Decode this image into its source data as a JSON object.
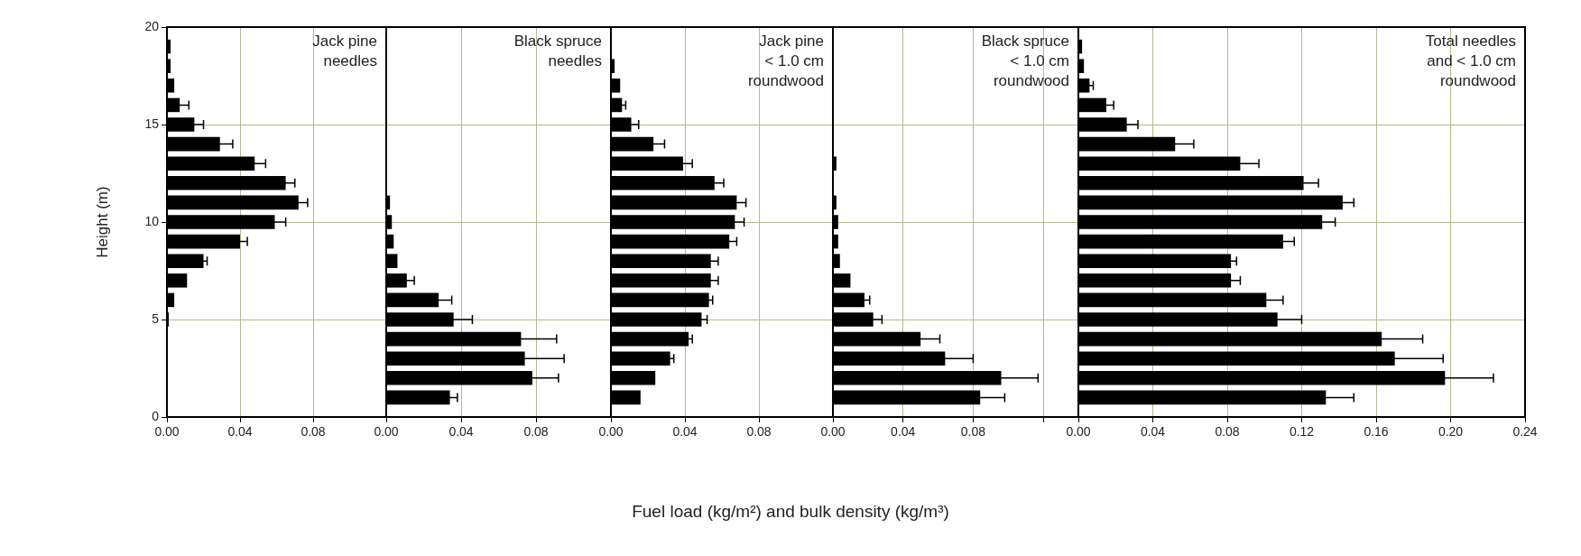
{
  "chart_data": [
    {
      "type": "bar",
      "orientation": "horizontal",
      "title": "Jack pine\nneedles",
      "ylabel": "Height (m)",
      "color": "#000000",
      "grid": true,
      "x": [
        1,
        2,
        3,
        4,
        5,
        6,
        7,
        8,
        9,
        10,
        11,
        12,
        13,
        14,
        15,
        16,
        17,
        18,
        19
      ],
      "values": [
        0,
        0,
        0,
        0,
        0.001,
        0.004,
        0.011,
        0.02,
        0.04,
        0.059,
        0.072,
        0.065,
        0.048,
        0.029,
        0.015,
        0.007,
        0.004,
        0.002,
        0.002
      ],
      "errors": [
        null,
        null,
        null,
        null,
        null,
        null,
        null,
        0.002,
        0.004,
        0.006,
        0.005,
        0.005,
        0.006,
        0.007,
        0.005,
        0.005,
        null,
        null,
        null
      ],
      "xlim": [
        0,
        0.12
      ],
      "xticks": [
        {
          "value": 0,
          "label": "0.00"
        },
        {
          "value": 0.04,
          "label": "0.04"
        },
        {
          "value": 0.08,
          "label": "0.08"
        }
      ],
      "ylim": [
        0,
        20
      ],
      "yticks": [
        0,
        5,
        10,
        15,
        20
      ]
    },
    {
      "type": "bar",
      "orientation": "horizontal",
      "title": "Black spruce\nneedles",
      "color": "#000000",
      "grid": true,
      "tick_labels": "x",
      "x": [
        1,
        2,
        3,
        4,
        5,
        6,
        7,
        8,
        9,
        10,
        11,
        12,
        13,
        14,
        15,
        16,
        17,
        18,
        19
      ],
      "values": [
        0.034,
        0.078,
        0.074,
        0.072,
        0.036,
        0.028,
        0.011,
        0.006,
        0.004,
        0.003,
        0.002,
        0,
        0,
        0,
        0,
        0,
        0,
        0,
        0
      ],
      "errors": [
        0.004,
        0.014,
        0.021,
        0.019,
        0.01,
        0.007,
        0.004,
        null,
        null,
        null,
        null,
        null,
        null,
        null,
        null,
        null,
        null,
        null,
        null
      ],
      "xlim": [
        0,
        0.12
      ],
      "xticks": [
        {
          "value": 0,
          "label": "0.00"
        },
        {
          "value": 0.04,
          "label": "0.04"
        },
        {
          "value": 0.08,
          "label": "0.08"
        }
      ],
      "ylim": [
        0,
        20
      ],
      "yticks": [
        0,
        5,
        10,
        15,
        20
      ]
    },
    {
      "type": "bar",
      "orientation": "horizontal",
      "title": "Jack pine\n< 1.0 cm\nroundwood",
      "xlabel": "Fuel load (kg/m²) and bulk density (kg/m³)",
      "color": "#000000",
      "grid": true,
      "tick_labels": "x",
      "x": [
        1,
        2,
        3,
        4,
        5,
        6,
        7,
        8,
        9,
        10,
        11,
        12,
        13,
        14,
        15,
        16,
        17,
        18,
        19
      ],
      "values": [
        0.016,
        0.024,
        0.032,
        0.042,
        0.049,
        0.053,
        0.054,
        0.054,
        0.064,
        0.067,
        0.068,
        0.056,
        0.039,
        0.023,
        0.011,
        0.006,
        0.005,
        0.002,
        0
      ],
      "errors": [
        null,
        null,
        0.002,
        0.002,
        0.003,
        0.002,
        0.004,
        0.004,
        0.004,
        0.005,
        0.005,
        0.005,
        0.005,
        0.006,
        0.004,
        0.002,
        null,
        null,
        null
      ],
      "xlim": [
        0,
        0.12
      ],
      "xticks": [
        {
          "value": 0,
          "label": "0.00"
        },
        {
          "value": 0.04,
          "label": "0.04"
        },
        {
          "value": 0.08,
          "label": "0.08"
        }
      ],
      "ylim": [
        0,
        20
      ],
      "yticks": [
        0,
        5,
        10,
        15,
        20
      ]
    },
    {
      "type": "bar",
      "orientation": "horizontal",
      "title": "Black spruce\n< 1.0 cm\nroundwood",
      "color": "#000000",
      "grid": true,
      "tick_labels": "x",
      "x": [
        1,
        2,
        3,
        4,
        5,
        6,
        7,
        8,
        9,
        10,
        11,
        12,
        13,
        14,
        15,
        16,
        17,
        18,
        19
      ],
      "values": [
        0.084,
        0.096,
        0.064,
        0.05,
        0.023,
        0.018,
        0.01,
        0.004,
        0.003,
        0.003,
        0.002,
        0,
        0.002,
        0,
        0,
        0,
        0,
        0,
        0
      ],
      "errors": [
        0.014,
        0.021,
        0.016,
        0.011,
        0.005,
        0.003,
        null,
        null,
        null,
        null,
        null,
        null,
        null,
        null,
        null,
        null,
        null,
        null,
        null
      ],
      "xlim": [
        0,
        0.14
      ],
      "xticks": [
        {
          "value": 0,
          "label": "0.00"
        },
        {
          "value": 0.04,
          "label": "0.04"
        },
        {
          "value": 0.08,
          "label": "0.08"
        },
        {
          "value": 0.12,
          "label": null
        }
      ],
      "ylim": [
        0,
        20
      ],
      "yticks": [
        0,
        5,
        10,
        15,
        20
      ]
    },
    {
      "type": "bar",
      "orientation": "horizontal",
      "title": "Total needles\nand < 1.0 cm\nroundwood",
      "color": "#000000",
      "grid": true,
      "tick_labels": "x",
      "x": [
        1,
        2,
        3,
        4,
        5,
        6,
        7,
        8,
        9,
        10,
        11,
        12,
        13,
        14,
        15,
        16,
        17,
        18,
        19
      ],
      "values": [
        0.133,
        0.197,
        0.17,
        0.163,
        0.107,
        0.101,
        0.082,
        0.082,
        0.11,
        0.131,
        0.142,
        0.121,
        0.087,
        0.052,
        0.026,
        0.015,
        0.006,
        0.003,
        0.002
      ],
      "errors": [
        0.015,
        0.026,
        0.026,
        0.022,
        0.013,
        0.009,
        0.005,
        0.003,
        0.006,
        0.007,
        0.006,
        0.008,
        0.01,
        0.01,
        0.006,
        0.004,
        0.002,
        null,
        null
      ],
      "xlim": [
        0,
        0.24
      ],
      "xticks": [
        {
          "value": 0,
          "label": "0.00"
        },
        {
          "value": 0.04,
          "label": "0.04"
        },
        {
          "value": 0.08,
          "label": "0.08"
        },
        {
          "value": 0.12,
          "label": "0.12"
        },
        {
          "value": 0.16,
          "label": "0.16"
        },
        {
          "value": 0.2,
          "label": "0.20"
        },
        {
          "value": 0.24,
          "label": "0.24"
        }
      ],
      "ylim": [
        0,
        20
      ],
      "yticks": [
        0,
        5,
        10,
        15,
        20
      ]
    }
  ]
}
